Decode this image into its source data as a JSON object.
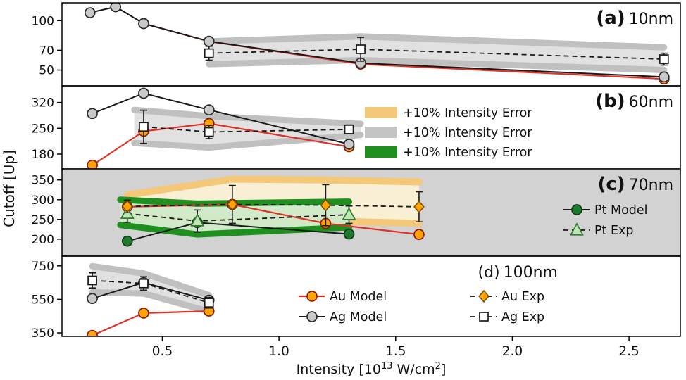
{
  "colors": {
    "background": "#ffffff",
    "axis": "#000000",
    "text": "#111111",
    "au_line": "#e03127",
    "au_fill": "#ffa400",
    "au_edge": "#8c1a10",
    "ag_fill": "#c9c9c9",
    "ag_edge": "#2b2b2b",
    "black_line": "#1a1a1a",
    "exp_square_fill": "#ffffff",
    "band_gray_fill": "#e0e0e0",
    "band_gray_edge": "#c0c0c0",
    "band_tan_fill": "#faefd4",
    "band_tan_edge": "#f3c878",
    "band_green_fill": "#cfe9c8",
    "band_green_edge": "#1f8f1f",
    "pt_fill": "#1e7a2e",
    "pt_edge": "#0d3d14",
    "pt_exp_fill": "#c2e6b8",
    "pt_exp_edge": "#2e7d32",
    "panel_c_bg": "#d2d2d2",
    "legend_swatch_gray": "#c3c3c3"
  },
  "chart_data": {
    "type": "line",
    "ylabel": "Cutoff [Up]",
    "xlabel": {
      "pre": "Intensity [10",
      "sup1": "13",
      "mid": " W/cm",
      "sup2": "2",
      "post": "]"
    },
    "xlim": [
      0.07,
      2.72
    ],
    "x_ticks": [
      {
        "value": 0.5,
        "label": "0.5"
      },
      {
        "value": 1.0,
        "label": "1.0"
      },
      {
        "value": 1.5,
        "label": "1.5"
      },
      {
        "value": 2.0,
        "label": "2.0"
      },
      {
        "value": 2.5,
        "label": "2.5"
      }
    ],
    "panels": [
      {
        "id": "a",
        "label_bold": "(a)",
        "label": "10nm",
        "bold_label": true,
        "ylim": [
          34,
          118
        ],
        "yticks": [
          50,
          70,
          100
        ],
        "background": false,
        "bands": [
          {
            "style": "gray",
            "x": [
              0.7,
              1.35,
              2.65
            ],
            "upper": [
              79,
              84,
              73
            ],
            "lower": [
              56,
              60,
              50
            ]
          }
        ],
        "series": [
          {
            "id": "au_model",
            "x": [
              0.42,
              0.7,
              1.35,
              2.65
            ],
            "y": [
              97,
              79,
              56,
              41
            ]
          },
          {
            "id": "ag_model",
            "x": [
              0.19,
              0.3,
              0.42,
              0.7,
              1.35,
              2.65
            ],
            "y": [
              108,
              114,
              97,
              79,
              57,
              43
            ]
          },
          {
            "id": "ag_exp",
            "x": [
              0.7,
              1.35,
              2.65
            ],
            "y": [
              67,
              71,
              61
            ],
            "yerr": [
              7,
              12,
              6
            ]
          }
        ]
      },
      {
        "id": "b",
        "label_bold": "(b)",
        "label": "60nm",
        "bold_label": true,
        "ylim": [
          140,
          365
        ],
        "yticks": [
          180,
          250,
          320
        ],
        "background": false,
        "bands": [
          {
            "style": "gray",
            "x": [
              0.38,
              0.7,
              1.35
            ],
            "upper": [
              300,
              283,
              262
            ],
            "lower": [
              210,
              198,
              232
            ]
          }
        ],
        "series": [
          {
            "id": "au_model",
            "x": [
              0.2,
              0.42,
              0.7,
              1.3
            ],
            "y": [
              150,
              242,
              263,
              200
            ]
          },
          {
            "id": "ag_model",
            "x": [
              0.2,
              0.42,
              0.7,
              1.3
            ],
            "y": [
              290,
              345,
              300,
              207
            ]
          },
          {
            "id": "ag_exp",
            "x": [
              0.42,
              0.7,
              1.3
            ],
            "y": [
              254,
              240,
              247
            ],
            "yerr": [
              45,
              18,
              12
            ]
          }
        ]
      },
      {
        "id": "c",
        "label_bold": "(c)",
        "label": "70nm",
        "bold_label": true,
        "ylim": [
          157,
          378
        ],
        "yticks": [
          200,
          250,
          300,
          350
        ],
        "background": true,
        "bands": [
          {
            "style": "tan",
            "x": [
              0.35,
              0.8,
              1.2,
              1.6
            ],
            "upper": [
              312,
              352,
              350,
              345
            ],
            "lower": [
              258,
              250,
              246,
              240
            ]
          },
          {
            "style": "green",
            "x": [
              0.32,
              0.65,
              1.3
            ],
            "upper": [
              300,
              290,
              295
            ],
            "lower": [
              236,
              212,
              230
            ]
          }
        ],
        "series": [
          {
            "id": "pt_model",
            "x": [
              0.35,
              0.65,
              1.3
            ],
            "y": [
              195,
              242,
              213
            ]
          },
          {
            "id": "au_model",
            "x": [
              0.35,
              0.8,
              1.2,
              1.6
            ],
            "y": [
              282,
              288,
              240,
              212
            ]
          },
          {
            "id": "pt_exp",
            "x": [
              0.35,
              0.65,
              1.3
            ],
            "y": [
              265,
              246,
              262
            ],
            "yerr": [
              22,
              28,
              22
            ]
          },
          {
            "id": "au_exp",
            "x": [
              0.35,
              0.8,
              1.2,
              1.6
            ],
            "y": [
              283,
              288,
              286,
              282
            ],
            "yerr": [
              16,
              48,
              52,
              38
            ]
          }
        ]
      },
      {
        "id": "d",
        "label_bold": "(d)",
        "label": "100nm",
        "bold_label": false,
        "ylim": [
          329,
          808
        ],
        "yticks": [
          350,
          550,
          750
        ],
        "background": false,
        "bands": [
          {
            "style": "gray",
            "x": [
              0.2,
              0.42,
              0.7
            ],
            "upper": [
              748,
              705,
              575
            ],
            "lower": [
              592,
              585,
              478
            ]
          }
        ],
        "series": [
          {
            "id": "au_model",
            "x": [
              0.2,
              0.42,
              0.7
            ],
            "y": [
              335,
              468,
              480
            ]
          },
          {
            "id": "ag_model",
            "x": [
              0.2,
              0.42,
              0.7
            ],
            "y": [
              555,
              650,
              545
            ]
          },
          {
            "id": "ag_exp",
            "x": [
              0.2,
              0.42,
              0.7
            ],
            "y": [
              663,
              645,
              530
            ],
            "yerr": [
              45,
              40,
              32
            ]
          }
        ]
      }
    ],
    "legends": {
      "bands": {
        "items": [
          {
            "style": "tan",
            "label": "+10% Intensity Error"
          },
          {
            "style": "gray",
            "label": "+10% Intensity Error"
          },
          {
            "style": "green",
            "label": "+10% Intensity Error"
          }
        ]
      },
      "panel_c": {
        "items": [
          {
            "series": "pt_model",
            "label": "Pt Model"
          },
          {
            "series": "pt_exp",
            "label": "Pt Exp"
          }
        ]
      },
      "panel_d": {
        "items": [
          {
            "series": "au_model",
            "label": "Au Model"
          },
          {
            "series": "au_exp",
            "label": "Au Exp"
          },
          {
            "series": "ag_model",
            "label": "Ag Model"
          },
          {
            "series": "ag_exp",
            "label": "Ag Exp"
          }
        ]
      }
    }
  }
}
